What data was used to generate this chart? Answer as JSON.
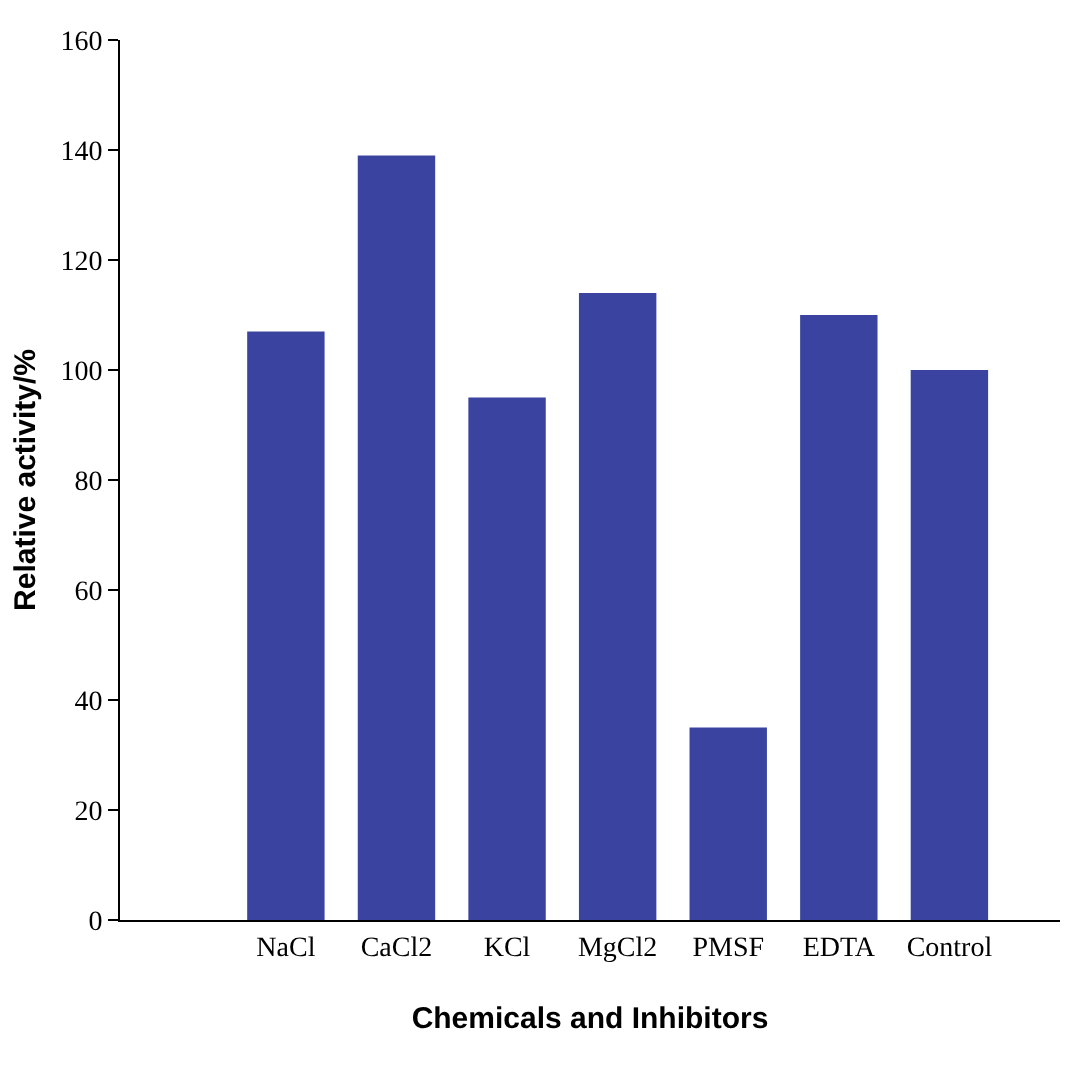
{
  "chart_data": {
    "type": "bar",
    "xlabel": "Chemicals and Inhibitors",
    "ylabel": "Relative activity/%",
    "categories": [
      "NaCl",
      "CaCl2",
      "KCl",
      "MgCl2",
      "PMSF",
      "EDTA",
      "Control"
    ],
    "values": [
      107,
      139,
      95,
      114,
      35,
      110,
      100
    ],
    "color": "#3a44a0",
    "ylim": [
      0,
      160
    ],
    "yticks": [
      0,
      20,
      40,
      60,
      80,
      100,
      120,
      140,
      160
    ]
  }
}
